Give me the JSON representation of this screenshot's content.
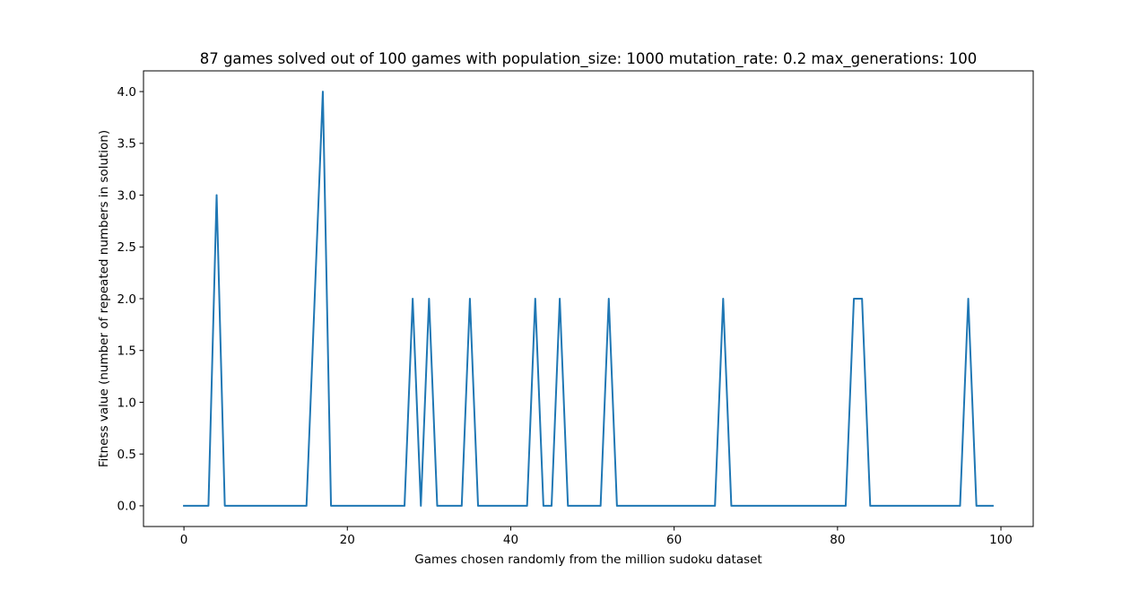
{
  "chart_data": {
    "type": "line",
    "title": "87 games solved out of 100 games with population_size: 1000 mutation_rate: 0.2 max_generations: 100",
    "xlabel": "Games chosen randomly from the million sudoku dataset",
    "ylabel": "Fitness value (number of repeated numbers in solution)",
    "xlim": [
      -4.95,
      103.95
    ],
    "ylim": [
      -0.2,
      4.2
    ],
    "xticks": [
      0,
      20,
      40,
      60,
      80,
      100
    ],
    "xtick_labels": [
      "0",
      "20",
      "40",
      "60",
      "80",
      "100"
    ],
    "yticks": [
      0.0,
      0.5,
      1.0,
      1.5,
      2.0,
      2.5,
      3.0,
      3.5,
      4.0
    ],
    "ytick_labels": [
      "0.0",
      "0.5",
      "1.0",
      "1.5",
      "2.0",
      "2.5",
      "3.0",
      "3.5",
      "4.0"
    ],
    "grid": false,
    "line_color": "#1f77b4",
    "series": [
      {
        "x": [
          0,
          1,
          2,
          3,
          4,
          5,
          6,
          7,
          8,
          9,
          10,
          11,
          12,
          13,
          14,
          15,
          16,
          17,
          18,
          19,
          20,
          21,
          22,
          23,
          24,
          25,
          26,
          27,
          28,
          29,
          30,
          31,
          32,
          33,
          34,
          35,
          36,
          37,
          38,
          39,
          40,
          41,
          42,
          43,
          44,
          45,
          46,
          47,
          48,
          49,
          50,
          51,
          52,
          53,
          54,
          55,
          56,
          57,
          58,
          59,
          60,
          61,
          62,
          63,
          64,
          65,
          66,
          67,
          68,
          69,
          70,
          71,
          72,
          73,
          74,
          75,
          76,
          77,
          78,
          79,
          80,
          81,
          82,
          83,
          84,
          85,
          86,
          87,
          88,
          89,
          90,
          91,
          92,
          93,
          94,
          95,
          96,
          97,
          98,
          99
        ],
        "values": [
          0,
          0,
          0,
          0,
          3,
          0,
          0,
          0,
          0,
          0,
          0,
          0,
          0,
          0,
          0,
          0,
          2,
          4,
          0,
          0,
          0,
          0,
          0,
          0,
          0,
          0,
          0,
          0,
          2,
          0,
          2,
          0,
          0,
          0,
          0,
          2,
          0,
          0,
          0,
          0,
          0,
          0,
          0,
          2,
          0,
          0,
          2,
          0,
          0,
          0,
          0,
          0,
          2,
          0,
          0,
          0,
          0,
          0,
          0,
          0,
          0,
          0,
          0,
          0,
          0,
          0,
          2,
          0,
          0,
          0,
          0,
          0,
          0,
          0,
          0,
          0,
          0,
          0,
          0,
          0,
          0,
          0,
          2,
          2,
          0,
          0,
          0,
          0,
          0,
          0,
          0,
          0,
          0,
          0,
          0,
          0,
          2,
          0,
          0,
          0
        ]
      }
    ]
  }
}
